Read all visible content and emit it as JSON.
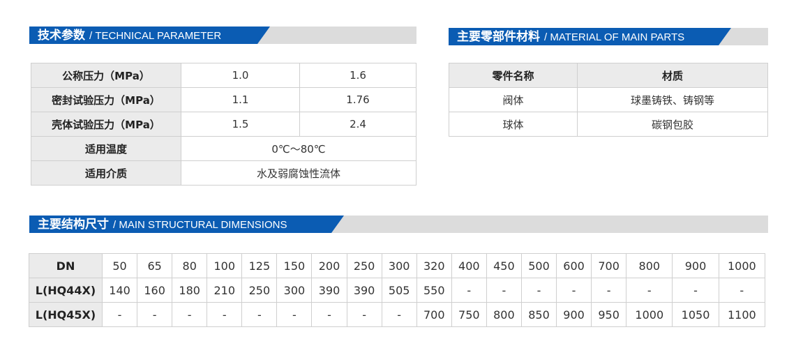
{
  "tech": {
    "title_cn": "技术参数",
    "title_en": "/ TECHNICAL PARAMETER",
    "rows": [
      {
        "label": "公称压力（MPa）",
        "v1": "1.0",
        "v2": "1.6"
      },
      {
        "label": "密封试验压力（MPa）",
        "v1": "1.1",
        "v2": "1.76"
      },
      {
        "label": "壳体试验压力（MPa）",
        "v1": "1.5",
        "v2": "2.4"
      },
      {
        "label": "适用温度",
        "v": "0℃～80℃"
      },
      {
        "label": "适用介质",
        "v": "水及弱腐蚀性流体"
      }
    ]
  },
  "material": {
    "title_cn": "主要零部件材料",
    "title_en": "/ MATERIAL OF MAIN PARTS",
    "headers": [
      "零件名称",
      "材质"
    ],
    "rows": [
      [
        "阀体",
        "球墨铸铁、铸钢等"
      ],
      [
        "球体",
        "碳钢包胶"
      ]
    ]
  },
  "dims": {
    "title_cn": "主要结构尺寸",
    "title_en": "/ MAIN STRUCTURAL DIMENSIONS",
    "rows": [
      {
        "label": "DN",
        "values": [
          "50",
          "65",
          "80",
          "100",
          "125",
          "150",
          "200",
          "250",
          "300",
          "320",
          "400",
          "450",
          "500",
          "600",
          "700",
          "800",
          "900",
          "1000"
        ]
      },
      {
        "label": "L(HQ44X)",
        "values": [
          "140",
          "160",
          "180",
          "210",
          "250",
          "300",
          "390",
          "390",
          "505",
          "550",
          "-",
          "-",
          "-",
          "-",
          "-",
          "-",
          "-",
          "-"
        ]
      },
      {
        "label": "L(HQ45X)",
        "values": [
          "-",
          "-",
          "-",
          "-",
          "-",
          "-",
          "-",
          "-",
          "-",
          "700",
          "750",
          "800",
          "850",
          "900",
          "950",
          "1000",
          "1050",
          "1100"
        ]
      }
    ]
  },
  "colors": {
    "accent": "#0b5cb3",
    "band_gray": "#dcdcdc",
    "header_cell": "#ebebeb"
  }
}
